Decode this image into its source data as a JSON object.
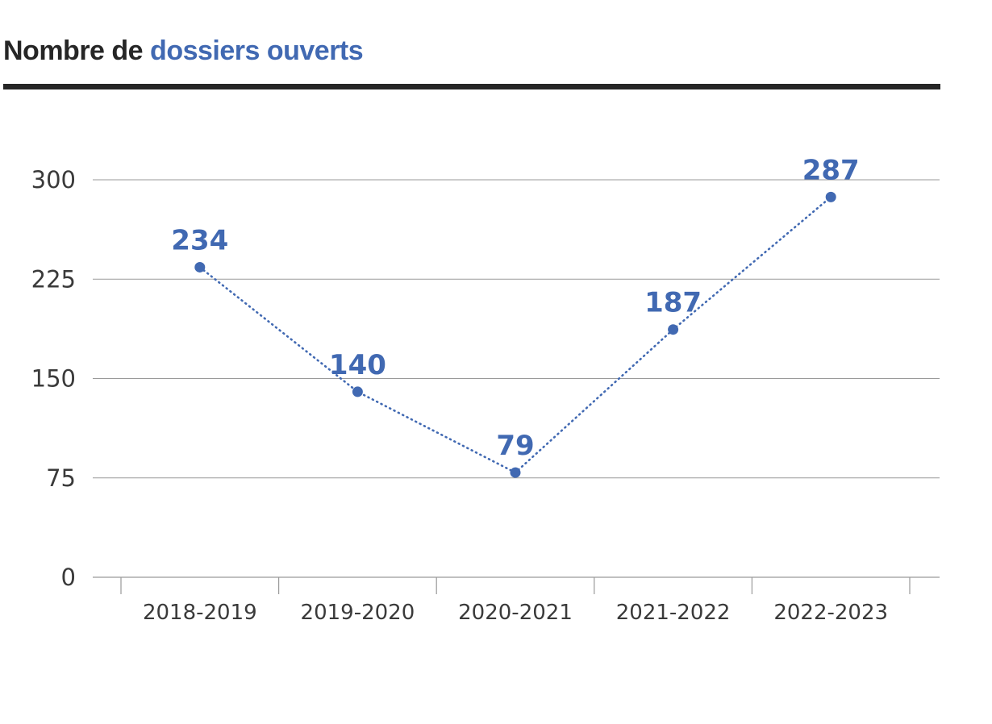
{
  "header": {
    "title_plain": "Nombre de ",
    "title_highlight": "dossiers ouverts"
  },
  "colors": {
    "series": "#4169b2",
    "title_dark": "#262626",
    "grid": "#9a9a9a"
  },
  "chart_data": {
    "type": "line",
    "title": "Nombre de dossiers ouverts",
    "xlabel": "",
    "ylabel": "",
    "categories": [
      "2018-2019",
      "2019-2020",
      "2020-2021",
      "2021-2022",
      "2022-2023"
    ],
    "series": [
      {
        "values": [
          234,
          140,
          79,
          187,
          287
        ],
        "color": "#4169b2",
        "line_style": "dotted",
        "markers": true,
        "data_labels": true
      }
    ],
    "ylim": [
      0,
      300
    ],
    "yticks": [
      0,
      75,
      150,
      225,
      300
    ],
    "grid": true
  }
}
